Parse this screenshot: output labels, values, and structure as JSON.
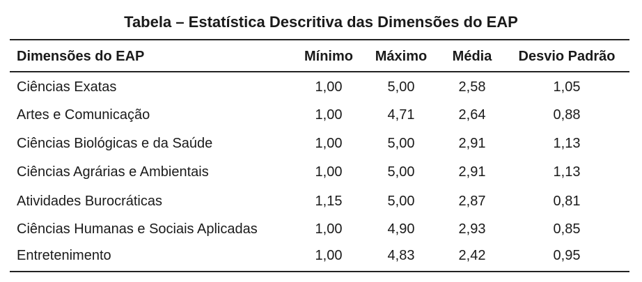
{
  "title": "Tabela – Estatística Descritiva das Dimensões do EAP",
  "headers": [
    "Dimensões do EAP",
    "Mínimo",
    "Máximo",
    "Média",
    "Desvio Padrão"
  ],
  "rows": [
    [
      "Ciências Exatas",
      "1,00",
      "5,00",
      "2,58",
      "1,05"
    ],
    [
      "Artes e Comunicação",
      "1,00",
      "4,71",
      "2,64",
      "0,88"
    ],
    [
      "Ciências Biológicas e da Saúde",
      "1,00",
      "5,00",
      "2,91",
      "1,13"
    ],
    [
      "Ciências Agrárias e Ambientais",
      "1,00",
      "5,00",
      "2,91",
      "1,13"
    ],
    [
      "Atividades Burocráticas",
      "1,15",
      "5,00",
      "2,87",
      "0,81"
    ],
    [
      "Ciências Humanas e Sociais Aplicadas",
      "1,00",
      "4,90",
      "2,93",
      "0,85"
    ],
    [
      "Entretenimento",
      "1,00",
      "4,83",
      "2,42",
      "0,95"
    ]
  ]
}
